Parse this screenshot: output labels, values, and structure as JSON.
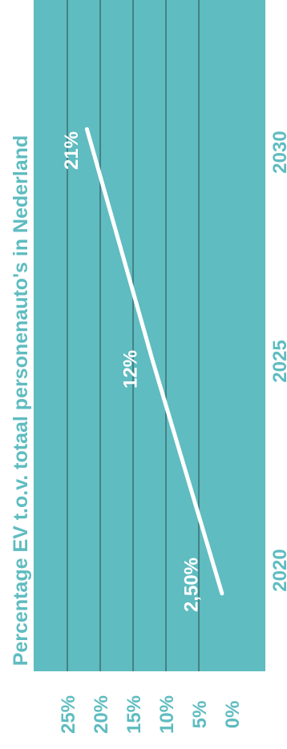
{
  "colors": {
    "plot_background": "#5fbcc0",
    "gridline": "#3a6f73",
    "line": "#ffffff",
    "text": "#5fbcc0",
    "data_label": "#ffffff"
  },
  "chart_data": {
    "type": "line",
    "orientation": "rotated-90",
    "title": "Percentage EV t.o.v. totaal personenauto's in Nederland",
    "x": [
      2020,
      2025,
      2030
    ],
    "x_tick_labels": [
      "2020",
      "2025",
      "2030"
    ],
    "values": [
      2.5,
      12,
      21
    ],
    "data_labels": [
      "2,50%",
      "12%",
      "21%"
    ],
    "ylim": [
      0,
      25
    ],
    "y_ticks": [
      0,
      5,
      10,
      15,
      20,
      25
    ],
    "y_tick_labels": [
      "0%",
      "5%",
      "10%",
      "15%",
      "20%",
      "25%"
    ],
    "grid": true
  }
}
